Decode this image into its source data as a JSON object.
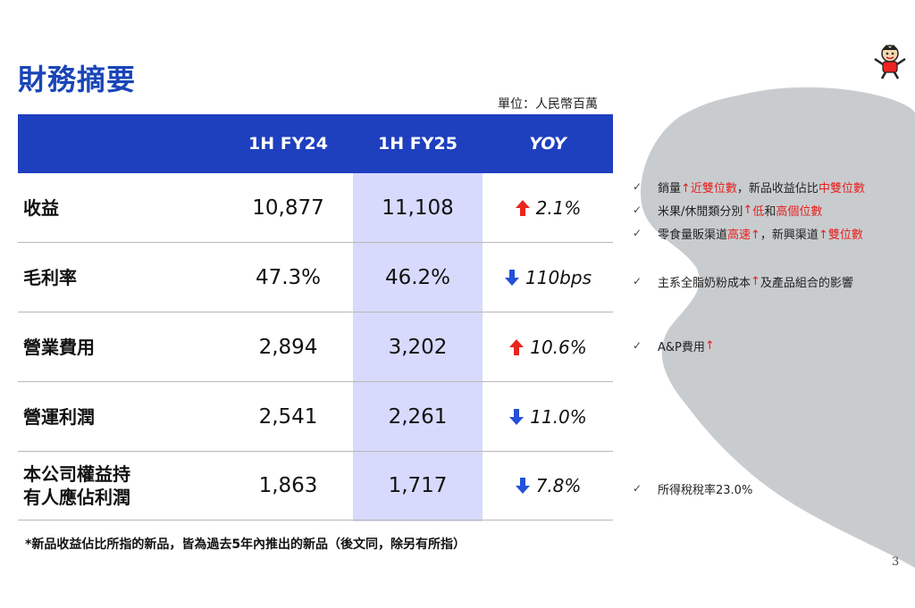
{
  "title": "財務摘要",
  "unit": "單位：人民幣百萬",
  "header": {
    "col1": "",
    "col2": "1H FY24",
    "col3": "1H FY25",
    "col4": "YOY"
  },
  "rows": [
    {
      "label": "收益",
      "fy24": "10,877",
      "fy25": "11,108",
      "yoy": "2.1%",
      "direction": "up"
    },
    {
      "label": "毛利率",
      "fy24": "47.3%",
      "fy25": "46.2%",
      "yoy": "110bps",
      "direction": "down"
    },
    {
      "label": "營業費用",
      "fy24": "2,894",
      "fy25": "3,202",
      "yoy": "10.6%",
      "direction": "up"
    },
    {
      "label": "營運利潤",
      "fy24": "2,541",
      "fy25": "2,261",
      "yoy": "11.0%",
      "direction": "down"
    },
    {
      "label_line1": "本公司權益持",
      "label_line2": "有人應佔利潤",
      "fy24": "1,863",
      "fy25": "1,717",
      "yoy": "7.8%",
      "direction": "down"
    }
  ],
  "notes": {
    "revenue": [
      {
        "parts": [
          "銷量",
          "↑近雙位數",
          "，新品收益佔比",
          "中雙位數"
        ]
      },
      {
        "parts": [
          "米果/休閒類分別",
          "↑",
          "低",
          "和",
          "高個位數"
        ]
      },
      {
        "parts": [
          "零食量販渠道",
          "高速↑",
          "，新興渠道",
          "↑雙位數"
        ]
      }
    ],
    "gross_margin": {
      "parts": [
        "主系全脂奶粉成本",
        "↑",
        "及產品組合的影響"
      ]
    },
    "opex": {
      "parts": [
        "A&P費用",
        "↑"
      ]
    },
    "net_profit": {
      "text": "所得稅稅率23.0%"
    }
  },
  "footnote": "*新品收益佔比所指的新品，皆為過去5年內推出的新品（後文同，除另有所指）",
  "page_number": "3",
  "colors": {
    "header_bg": "#1e3fbe",
    "highlight_col": "#d7dafc",
    "title": "#1a45b8",
    "up_arrow": "#e8271f",
    "down_arrow": "#2451d8",
    "red_text": "#e52020",
    "blob": "#c9ccce"
  }
}
